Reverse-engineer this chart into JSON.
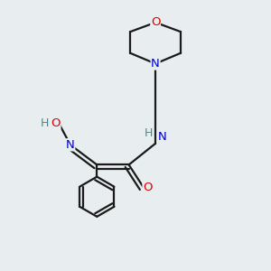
{
  "bg_color": "#e8eef0",
  "bond_color": "#1a1a1a",
  "atom_colors": {
    "O": "#dd0000",
    "N": "#0000cc",
    "H": "#4a8888",
    "C": "#1a1a1a"
  },
  "fig_size": [
    3.0,
    3.0
  ],
  "dpi": 100,
  "bond_lw": 1.6,
  "font_size": 9.5
}
